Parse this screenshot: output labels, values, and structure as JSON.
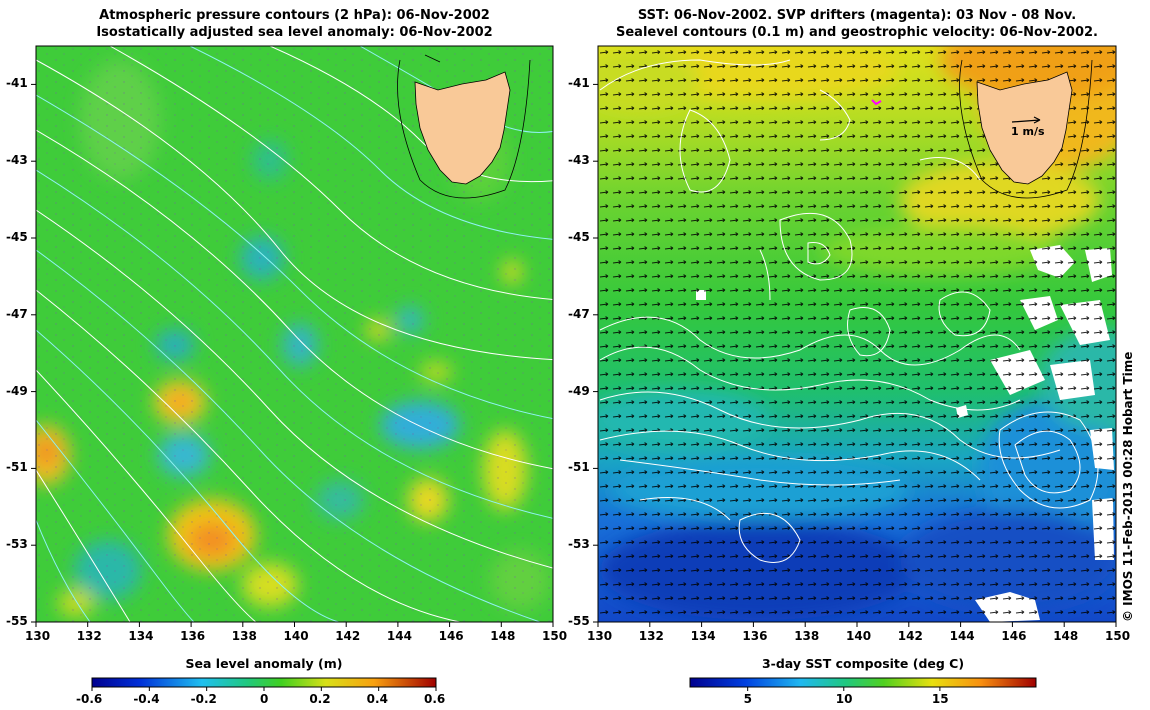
{
  "left_panel": {
    "title_line1": "Atmospheric pressure contours (2 hPa): 06-Nov-2002",
    "title_line2": "Isostatically adjusted sea level anomaly: 06-Nov-2002",
    "colorbar_label": "Sea level anomaly (m)",
    "colorbar_ticks": [
      "-0.6",
      "-0.4",
      "-0.2",
      "0",
      "0.2",
      "0.4",
      "0.6"
    ],
    "colorbar_range": [
      -0.6,
      0.6
    ]
  },
  "right_panel": {
    "title_line1": "SST: 06-Nov-2002. SVP drifters (magenta): 03 Nov - 08 Nov.",
    "title_line2": "Sealevel contours (0.1 m) and geostrophic velocity: 06-Nov-2002.",
    "scale_arrow_label": "1 m/s",
    "colorbar_label": "3-day SST composite (deg C)",
    "colorbar_ticks": [
      "5",
      "10",
      "15"
    ],
    "colorbar_range": [
      2,
      20
    ]
  },
  "axes": {
    "lat_ticks": [
      "-41",
      "-43",
      "-45",
      "-47",
      "-49",
      "-51",
      "-53",
      "-55"
    ],
    "lon_ticks": [
      "130",
      "132",
      "134",
      "136",
      "138",
      "140",
      "142",
      "144",
      "146",
      "148",
      "150"
    ],
    "lat_range": [
      -55,
      -40
    ],
    "lon_range": [
      130,
      150
    ]
  },
  "copyright": "© IMOS 11-Feb-2013 00:28 Hobart Time",
  "colors": {
    "land": "#f9c998",
    "ocean_mid_green": "#37c93a",
    "cold_blue": "#1452d2",
    "warm_yellow": "#f2d41a",
    "contour_white": "#ffffff",
    "contour_cyan": "#8ff2f2",
    "drifter_magenta": "#ff00ff"
  }
}
